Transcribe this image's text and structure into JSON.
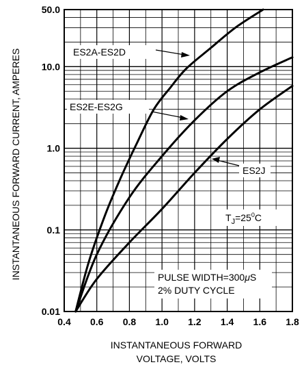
{
  "chart_data": {
    "type": "line",
    "title": "",
    "xlabel_lines": [
      "INSTANTANEOUS FORWARD",
      "VOLTAGE, VOLTS"
    ],
    "ylabel": "INSTANTANEOUS FORWARD CURRENT, AMPERES",
    "xlim": [
      0.4,
      1.8
    ],
    "ylim": [
      0.01,
      50.0
    ],
    "yscale": "log",
    "x_ticks": [
      "0.4",
      "0.6",
      "0.8",
      "1.0",
      "1.2",
      "1.4",
      "1.6",
      "1.8"
    ],
    "x_tick_values": [
      0.4,
      0.6,
      0.8,
      1.0,
      1.2,
      1.4,
      1.6,
      1.8
    ],
    "y_ticks": [
      "0.01",
      "0.1",
      "1.0",
      "10.0",
      "50.0"
    ],
    "y_tick_values": [
      0.01,
      0.1,
      1.0,
      10.0,
      50.0
    ],
    "grid": true,
    "series": [
      {
        "name": "ES2A-ES2D",
        "x": [
          0.47,
          0.55,
          0.65,
          0.75,
          0.85,
          0.95,
          1.05,
          1.15,
          1.3,
          1.45,
          1.62
        ],
        "y": [
          0.01,
          0.04,
          0.15,
          0.45,
          1.2,
          3.0,
          5.5,
          9.5,
          17,
          30,
          50
        ]
      },
      {
        "name": "ES2E-ES2G",
        "x": [
          0.47,
          0.6,
          0.8,
          1.0,
          1.2,
          1.4,
          1.6,
          1.8
        ],
        "y": [
          0.01,
          0.05,
          0.25,
          0.8,
          2.2,
          5.0,
          8.5,
          13
        ]
      },
      {
        "name": "ES2J",
        "x": [
          0.47,
          0.6,
          0.8,
          1.0,
          1.2,
          1.4,
          1.6,
          1.8
        ],
        "y": [
          0.01,
          0.025,
          0.07,
          0.18,
          0.5,
          1.3,
          3.0,
          5.8
        ]
      }
    ],
    "annotations": {
      "temperature_prefix": "T",
      "temperature_subscript": "J",
      "temperature_value": "=25",
      "temperature_unit": "C",
      "temperature_degree": "0",
      "pulse_width": "PULSE WIDTH=300",
      "pulse_mu": "μ",
      "pulse_unit": "S",
      "duty_cycle": "2% DUTY CYCLE"
    }
  }
}
